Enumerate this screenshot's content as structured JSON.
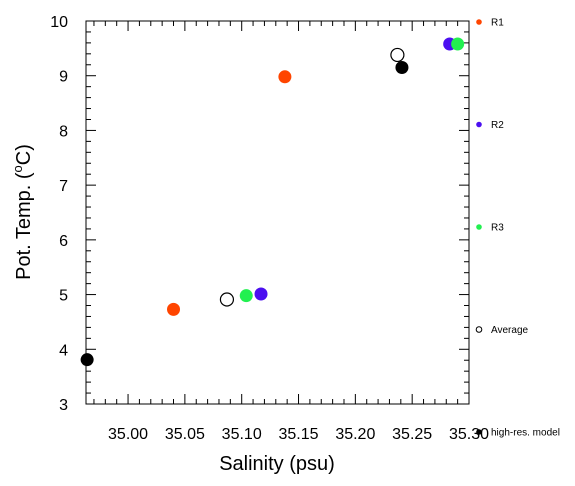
{
  "chart_data": {
    "type": "scatter",
    "xlabel": "Salinity (psu)",
    "ylabel_main": "Pot. Temp. (",
    "ylabel_sup": "o",
    "ylabel_end": "C)",
    "xlim": [
      34.963,
      35.3
    ],
    "ylim": [
      3,
      10
    ],
    "x_ticks": [
      "35.00",
      "35.05",
      "35.10",
      "35.15",
      "35.20",
      "35.25",
      "35.30"
    ],
    "x_tick_values": [
      35.0,
      35.05,
      35.1,
      35.15,
      35.2,
      35.25,
      35.3
    ],
    "y_ticks": [
      "3",
      "4",
      "5",
      "6",
      "7",
      "8",
      "9",
      "10"
    ],
    "y_tick_values": [
      3,
      4,
      5,
      6,
      7,
      8,
      9,
      10
    ],
    "legend_placement": "right",
    "series": [
      {
        "name": "R1",
        "color": "#ff4500",
        "marker": "filled-circle",
        "points": [
          {
            "x": 35.04,
            "y": 4.73
          },
          {
            "x": 35.138,
            "y": 8.98
          }
        ]
      },
      {
        "name": "R2",
        "color": "#4b0ff0",
        "marker": "filled-circle",
        "points": [
          {
            "x": 35.117,
            "y": 5.01
          },
          {
            "x": 35.283,
            "y": 9.58
          }
        ]
      },
      {
        "name": "R3",
        "color": "#22f050",
        "marker": "filled-circle",
        "points": [
          {
            "x": 35.104,
            "y": 4.98
          },
          {
            "x": 35.29,
            "y": 9.58
          }
        ]
      },
      {
        "name": "Average",
        "color": "#000000",
        "marker": "open-circle",
        "points": [
          {
            "x": 35.087,
            "y": 4.91
          },
          {
            "x": 35.237,
            "y": 9.38
          }
        ]
      },
      {
        "name": "high-res. model",
        "color": "#000000",
        "marker": "filled-circle",
        "points": [
          {
            "x": 34.964,
            "y": 3.81
          },
          {
            "x": 35.241,
            "y": 9.15
          }
        ]
      }
    ]
  }
}
